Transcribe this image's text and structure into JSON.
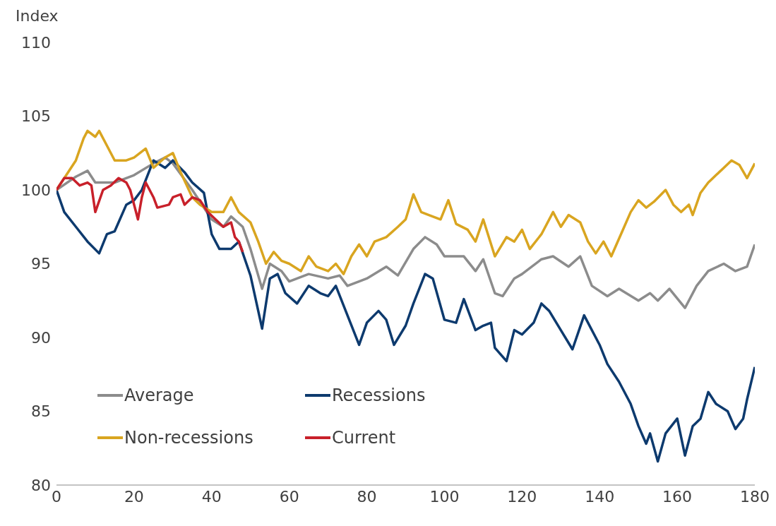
{
  "chart_data": {
    "type": "line",
    "ylabel": "Index",
    "xlim": [
      0,
      180
    ],
    "xticks": [
      0,
      20,
      40,
      60,
      80,
      100,
      120,
      140,
      160,
      180
    ],
    "ylim": [
      80,
      110
    ],
    "yticks": [
      80,
      85,
      90,
      95,
      100,
      105,
      110
    ],
    "grid": false,
    "legend": "bottom left",
    "marker": "none",
    "line_style": "solid",
    "series": [
      {
        "name": "Average",
        "color": "#8c8c8c",
        "x": [
          0,
          5,
          8,
          10,
          15,
          20,
          25,
          28,
          30,
          35,
          40,
          43,
          45,
          48,
          50,
          53,
          55,
          58,
          60,
          65,
          70,
          73,
          75,
          78,
          80,
          85,
          88,
          92,
          95,
          98,
          100,
          105,
          108,
          110,
          113,
          115,
          118,
          120,
          125,
          128,
          132,
          135,
          138,
          142,
          145,
          150,
          153,
          155,
          158,
          162,
          165,
          168,
          172,
          175,
          178,
          180
        ],
        "values": [
          100,
          100.9,
          101.3,
          100.5,
          100.5,
          101,
          101.8,
          102.2,
          101.8,
          100,
          98,
          97.5,
          98.2,
          97.5,
          96,
          93.3,
          95,
          94.5,
          93.8,
          94.3,
          94,
          94.2,
          93.5,
          93.8,
          94,
          94.8,
          94.2,
          96,
          96.8,
          96.3,
          95.5,
          95.5,
          94.5,
          95.3,
          93,
          92.8,
          94,
          94.3,
          95.3,
          95.5,
          94.8,
          95.5,
          93.5,
          92.8,
          93.3,
          92.5,
          93,
          92.5,
          93.3,
          92,
          93.5,
          94.5,
          95,
          94.5,
          94.8,
          96.3
        ]
      },
      {
        "name": "Recessions",
        "color": "#0d3a6e",
        "x": [
          0,
          2,
          5,
          8,
          11,
          13,
          15,
          18,
          20,
          22,
          25,
          28,
          30,
          33,
          35,
          38,
          40,
          42,
          45,
          47,
          50,
          53,
          55,
          57,
          59,
          62,
          65,
          68,
          70,
          72,
          75,
          78,
          80,
          83,
          85,
          87,
          90,
          92,
          95,
          97,
          100,
          103,
          105,
          108,
          110,
          112,
          113,
          116,
          118,
          120,
          123,
          125,
          127,
          130,
          133,
          136,
          140,
          142,
          145,
          148,
          150,
          152,
          153,
          155,
          157,
          160,
          162,
          164,
          166,
          168,
          170,
          173,
          175,
          177,
          178,
          180
        ],
        "values": [
          100,
          98.5,
          97.5,
          96.5,
          95.7,
          97,
          97.2,
          99,
          99.3,
          100,
          102,
          101.5,
          102,
          101.2,
          100.5,
          99.8,
          97,
          96,
          96,
          96.5,
          94.2,
          90.6,
          94,
          94.3,
          93,
          92.3,
          93.5,
          93,
          92.8,
          93.5,
          91.5,
          89.5,
          91,
          91.8,
          91.2,
          89.5,
          90.8,
          92.3,
          94.3,
          94,
          91.2,
          91,
          92.6,
          90.5,
          90.8,
          91,
          89.3,
          88.4,
          90.5,
          90.2,
          91,
          92.3,
          91.8,
          90.5,
          89.2,
          91.5,
          89.5,
          88.2,
          87,
          85.5,
          84,
          82.8,
          83.5,
          81.6,
          83.5,
          84.5,
          82,
          84,
          84.5,
          86.3,
          85.5,
          85,
          83.8,
          84.5,
          85.8,
          88
        ]
      },
      {
        "name": "Non-recessions",
        "color": "#d9a520",
        "x": [
          0,
          3,
          5,
          7,
          8,
          10,
          11,
          13,
          15,
          18,
          20,
          23,
          25,
          28,
          30,
          32,
          35,
          37,
          40,
          43,
          45,
          47,
          50,
          52,
          54,
          56,
          58,
          60,
          63,
          65,
          67,
          70,
          72,
          74,
          76,
          78,
          80,
          82,
          85,
          88,
          90,
          92,
          94,
          96,
          99,
          101,
          103,
          106,
          108,
          110,
          113,
          116,
          118,
          120,
          122,
          125,
          128,
          130,
          132,
          135,
          137,
          139,
          141,
          143,
          146,
          148,
          150,
          152,
          154,
          157,
          159,
          161,
          163,
          164,
          166,
          168,
          170,
          172,
          174,
          176,
          178,
          180
        ],
        "values": [
          100,
          101.2,
          102,
          103.5,
          104,
          103.6,
          104,
          103,
          102,
          102,
          102.2,
          102.8,
          101.5,
          102.2,
          102.5,
          101.2,
          99.5,
          99,
          98.5,
          98.5,
          99.5,
          98.5,
          97.8,
          96.5,
          95,
          95.8,
          95.2,
          95,
          94.5,
          95.5,
          94.8,
          94.5,
          95,
          94.3,
          95.5,
          96.3,
          95.5,
          96.5,
          96.8,
          97.5,
          98,
          99.7,
          98.5,
          98.3,
          98,
          99.3,
          97.7,
          97.3,
          96.5,
          98,
          95.5,
          96.8,
          96.5,
          97.3,
          96,
          97,
          98.5,
          97.5,
          98.3,
          97.8,
          96.5,
          95.7,
          96.5,
          95.5,
          97.3,
          98.5,
          99.3,
          98.8,
          99.2,
          100,
          99,
          98.5,
          99,
          98.3,
          99.8,
          100.5,
          101,
          101.5,
          102,
          101.7,
          100.8,
          101.8
        ]
      },
      {
        "name": "Current",
        "color": "#c8202a",
        "x": [
          0,
          2,
          4,
          6,
          8,
          9,
          10,
          12,
          14,
          16,
          18,
          19,
          21,
          22,
          23,
          25,
          26,
          29,
          30,
          32,
          33,
          35,
          37,
          39,
          41,
          43,
          45,
          46,
          47,
          48
        ],
        "values": [
          100,
          100.8,
          100.8,
          100.3,
          100.5,
          100.3,
          98.5,
          100,
          100.3,
          100.8,
          100.5,
          100,
          98,
          99.5,
          100.5,
          99.5,
          98.8,
          99,
          99.5,
          99.7,
          99,
          99.5,
          99.3,
          98.5,
          98,
          97.5,
          97.8,
          96.8,
          96.5,
          95.8
        ]
      }
    ]
  }
}
